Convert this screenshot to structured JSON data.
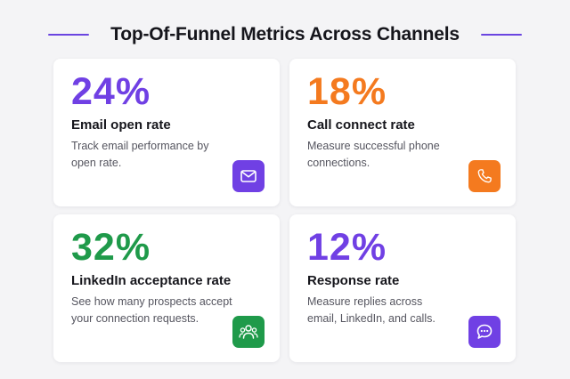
{
  "header": {
    "title": "Top-Of-Funnel Metrics Across Channels"
  },
  "colors": {
    "purple": "#7040e4",
    "orange": "#f47a1f",
    "green": "#1f9a4a",
    "accent_line": "#6a45e0"
  },
  "cards": [
    {
      "value": "24%",
      "title": "Email open rate",
      "description": "Track email performance by open rate.",
      "icon": "mail-icon",
      "color": "#7040e4"
    },
    {
      "value": "18%",
      "title": "Call connect rate",
      "description": "Measure successful phone connections.",
      "icon": "phone-icon",
      "color": "#f47a1f"
    },
    {
      "value": "32%",
      "title": "LinkedIn acceptance rate",
      "description": "See how many prospects accept your connection requests.",
      "icon": "people-icon",
      "color": "#1f9a4a"
    },
    {
      "value": "12%",
      "title": "Response rate",
      "description": "Measure replies across email, LinkedIn, and calls.",
      "icon": "chat-icon",
      "color": "#7040e4"
    }
  ]
}
